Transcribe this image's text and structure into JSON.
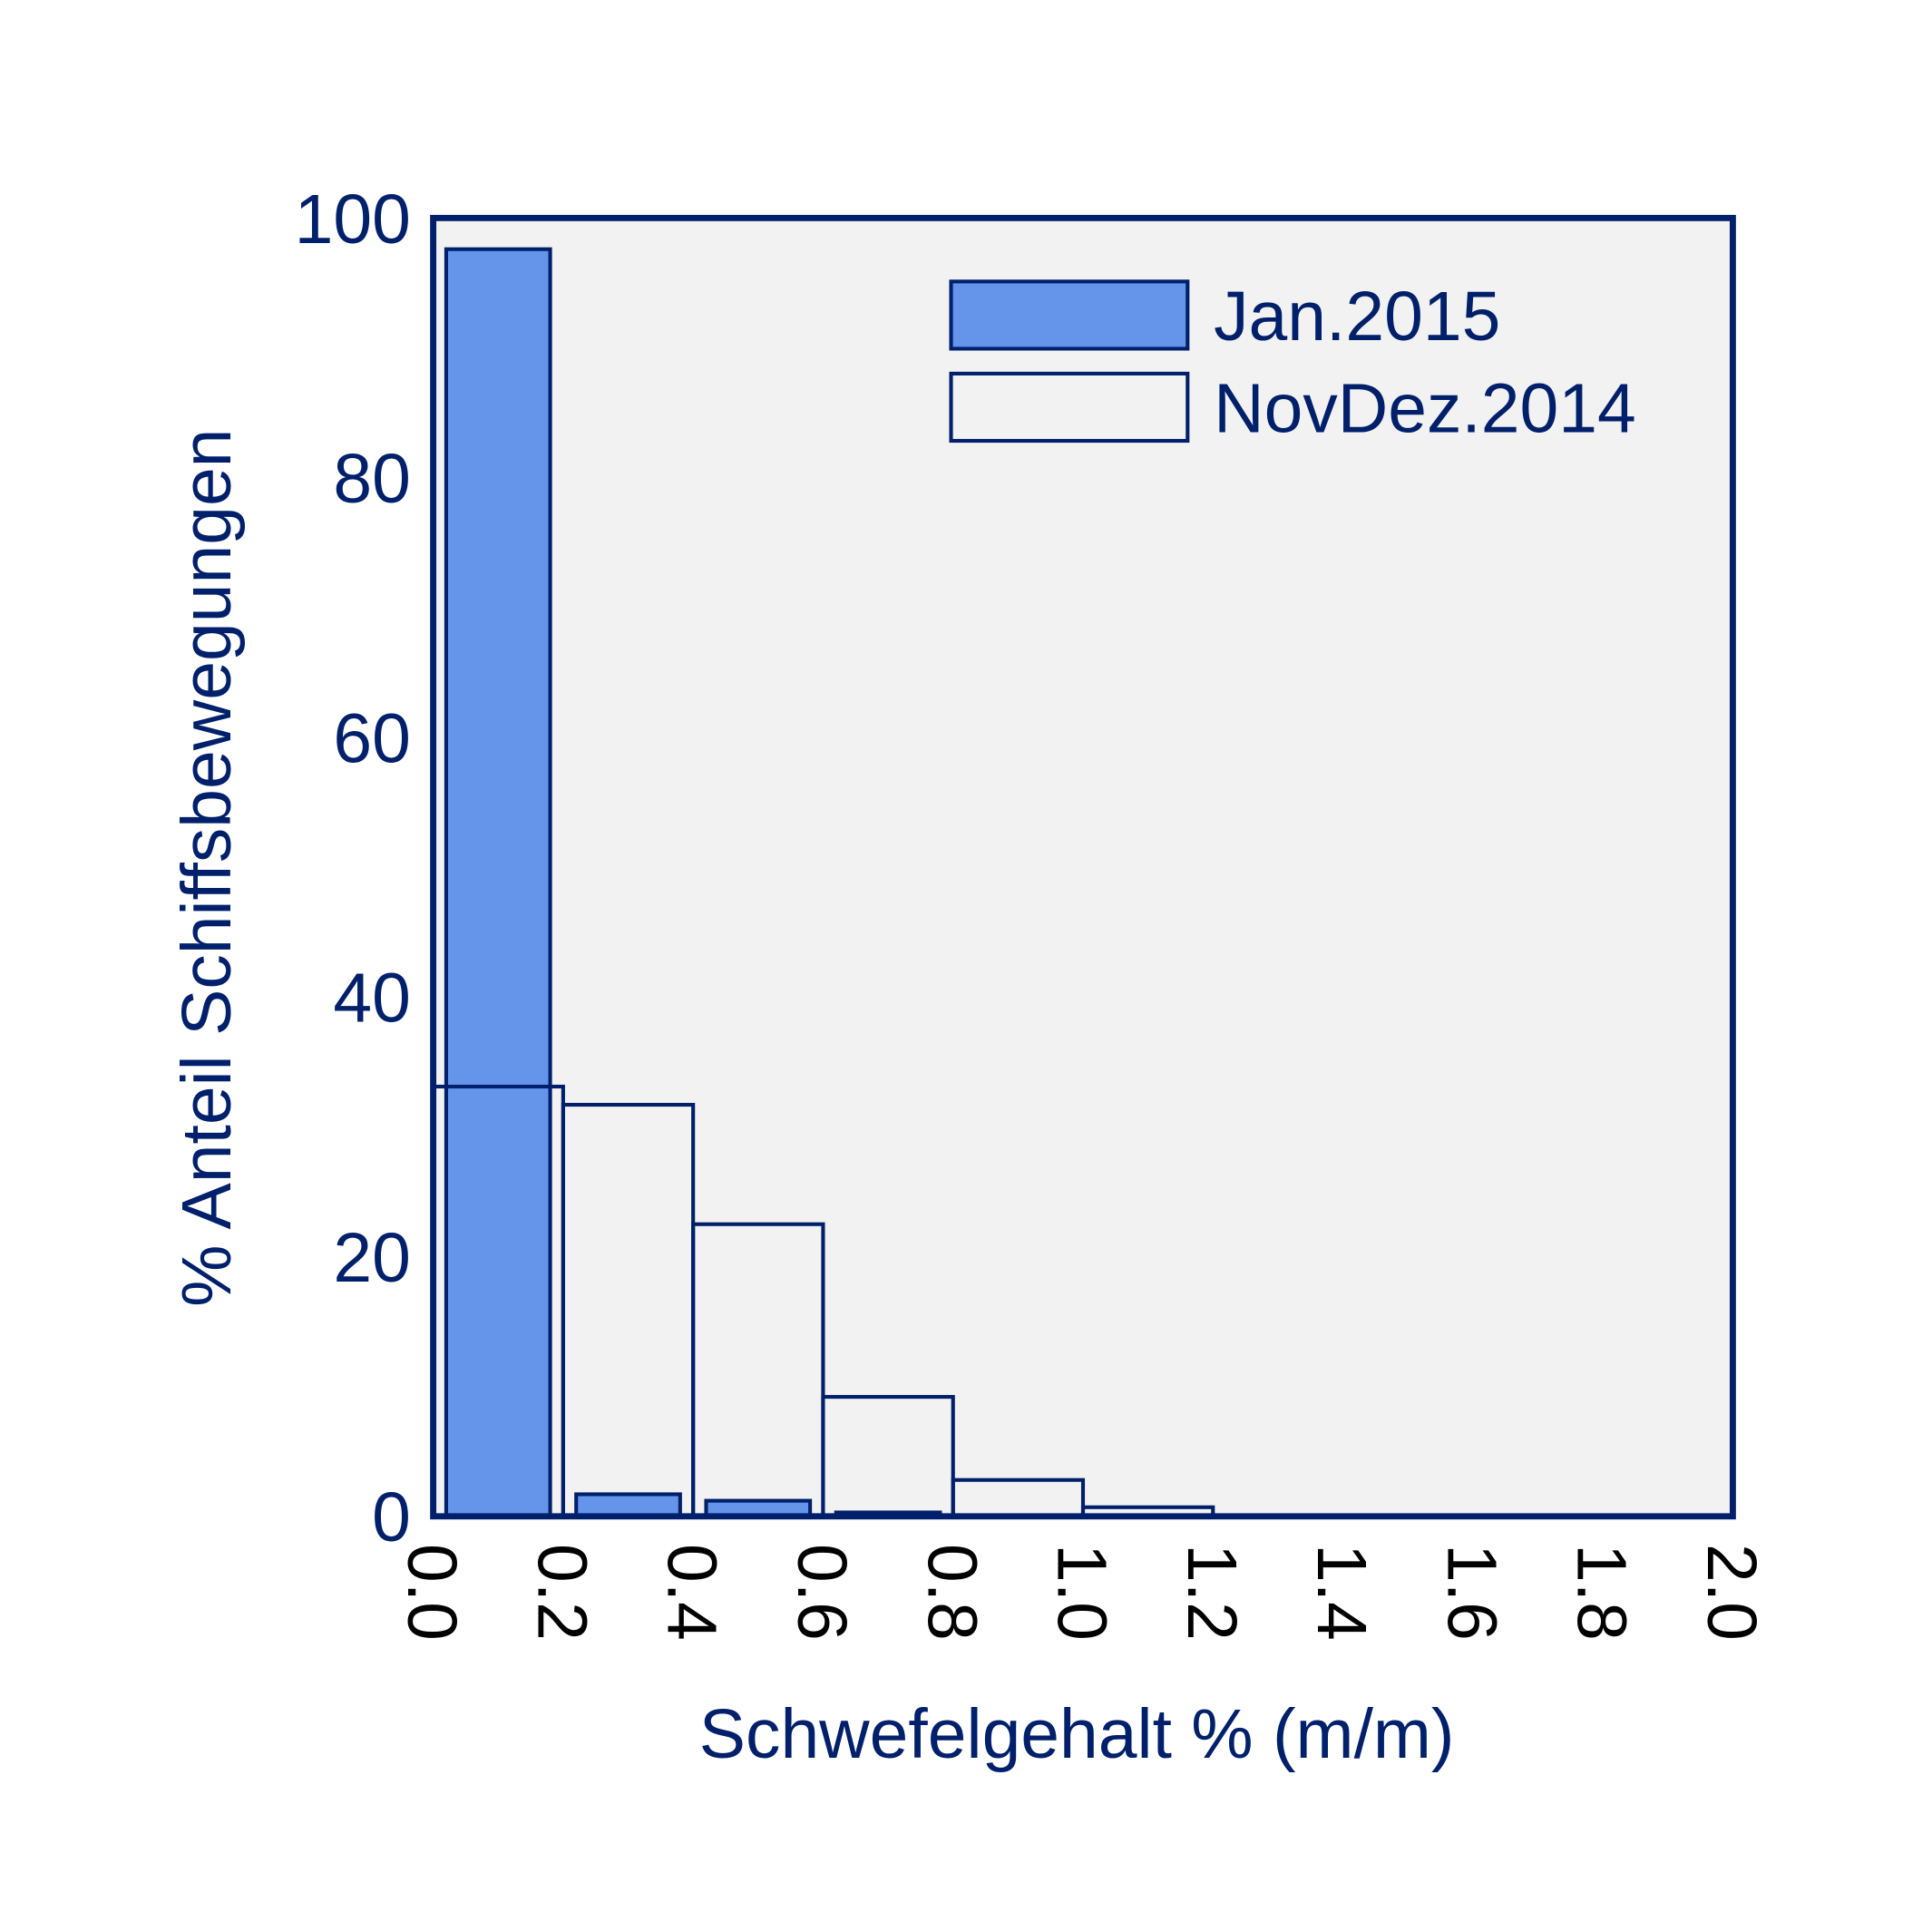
{
  "chart_data": {
    "type": "bar",
    "title": "",
    "xlabel": "Schwefelgehalt % (m/m)",
    "ylabel": "% Anteil Schiffsbewegungen",
    "xlim": [
      0,
      2.0
    ],
    "ylim": [
      0,
      100
    ],
    "xticks": [
      "0.0",
      "0.2",
      "0.4",
      "0.6",
      "0.8",
      "1.0",
      "1.2",
      "1.4",
      "1.6",
      "1.8",
      "2.0"
    ],
    "yticks": [
      "0",
      "20",
      "40",
      "60",
      "80",
      "100"
    ],
    "bin_edges": [
      0.0,
      0.2,
      0.4,
      0.6,
      0.8,
      1.0,
      1.2,
      1.4,
      1.6,
      1.8,
      2.0
    ],
    "legend_position": "top-right",
    "grid": false,
    "series": [
      {
        "name": "Jan.2015",
        "style": "filled",
        "values": [
          97.6,
          1.7,
          1.2,
          0.3,
          0,
          0,
          0,
          0,
          0,
          0
        ]
      },
      {
        "name": "NovDez.2014",
        "style": "outline",
        "values": [
          33.1,
          31.7,
          22.5,
          9.2,
          2.8,
          0.7,
          0,
          0,
          0,
          0
        ]
      }
    ]
  },
  "colors": {
    "axis": "#00206b",
    "fill": "#6495ea",
    "plot_bg": "#f2f2f2",
    "tick_text": "#000000"
  }
}
